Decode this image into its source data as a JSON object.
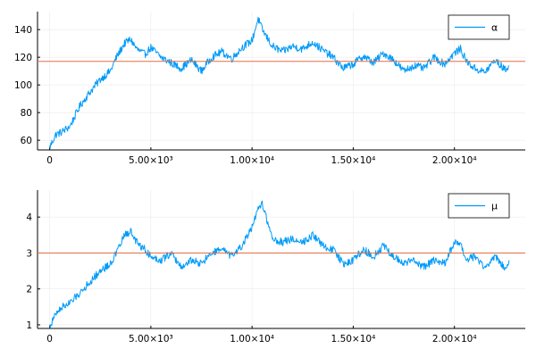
{
  "colors": {
    "series": "#009af9",
    "reference": "#e26f46",
    "grid": "#ebebeb",
    "axis": "#000000"
  },
  "chart_data": [
    {
      "type": "line",
      "legend_position": "top-right",
      "grid": true,
      "xlim": [
        -600,
        23500
      ],
      "ylim": [
        53,
        153
      ],
      "x_ticks": [
        0,
        5000,
        10000,
        15000,
        20000
      ],
      "x_tick_labels": [
        "0",
        "5.00×10³",
        "1.00×10⁴",
        "1.50×10⁴",
        "2.00×10⁴"
      ],
      "y_ticks": [
        60,
        80,
        100,
        120,
        140
      ],
      "y_tick_labels": [
        "60",
        "80",
        "100",
        "120",
        "140"
      ],
      "reference_line": 117,
      "series": [
        {
          "name": "α",
          "x": [
            0,
            300,
            600,
            1000,
            1500,
            2000,
            2500,
            3000,
            3300,
            3700,
            4000,
            4300,
            4700,
            5000,
            5500,
            6000,
            6500,
            7000,
            7500,
            8000,
            8500,
            9000,
            9500,
            10000,
            10300,
            10500,
            11000,
            11500,
            12000,
            12500,
            13000,
            13500,
            14000,
            14500,
            15000,
            15500,
            16000,
            16500,
            17000,
            17500,
            18000,
            18500,
            19000,
            19500,
            20000,
            20300,
            20600,
            21000,
            21500,
            22000,
            22500,
            22700
          ],
          "y": [
            55,
            64,
            66,
            70,
            85,
            95,
            104,
            110,
            120,
            130,
            133,
            126,
            122,
            127,
            120,
            116,
            112,
            118,
            110,
            120,
            124,
            119,
            127,
            132,
            148,
            140,
            128,
            124,
            128,
            126,
            131,
            125,
            120,
            112,
            115,
            121,
            116,
            123,
            118,
            110,
            114,
            112,
            120,
            115,
            123,
            126,
            117,
            112,
            109,
            118,
            111,
            114
          ]
        },
        {
          "name": "",
          "x": [],
          "y": []
        }
      ]
    },
    {
      "type": "line",
      "legend_position": "top-right",
      "grid": true,
      "xlim": [
        -600,
        23500
      ],
      "ylim": [
        0.9,
        4.75
      ],
      "x_ticks": [
        0,
        5000,
        10000,
        15000,
        20000
      ],
      "x_tick_labels": [
        "0",
        "5.00×10³",
        "1.00×10⁴",
        "1.50×10⁴",
        "2.00×10⁴"
      ],
      "y_ticks": [
        1,
        2,
        3,
        4
      ],
      "y_tick_labels": [
        "1",
        "2",
        "3",
        "4"
      ],
      "reference_line": 3.0,
      "series": [
        {
          "name": "μ",
          "x": [
            0,
            300,
            600,
            1000,
            1500,
            2000,
            2500,
            3000,
            3300,
            3700,
            4000,
            4300,
            4700,
            5000,
            5500,
            6000,
            6500,
            7000,
            7500,
            8000,
            8500,
            9000,
            9500,
            10000,
            10300,
            10500,
            11000,
            11500,
            12000,
            12500,
            13000,
            13500,
            14000,
            14500,
            15000,
            15500,
            16000,
            16500,
            17000,
            17500,
            18000,
            18500,
            19000,
            19500,
            20000,
            20300,
            20600,
            21000,
            21500,
            22000,
            22500,
            22700
          ],
          "y": [
            0.95,
            1.3,
            1.5,
            1.6,
            1.9,
            2.2,
            2.5,
            2.7,
            3.0,
            3.5,
            3.6,
            3.3,
            3.1,
            2.9,
            2.8,
            3.0,
            2.6,
            2.8,
            2.7,
            3.0,
            3.1,
            2.9,
            3.2,
            3.7,
            4.2,
            4.4,
            3.4,
            3.3,
            3.4,
            3.3,
            3.5,
            3.2,
            3.1,
            2.7,
            2.8,
            3.1,
            2.9,
            3.2,
            2.9,
            2.7,
            2.8,
            2.6,
            2.8,
            2.7,
            3.3,
            3.2,
            2.8,
            2.9,
            2.6,
            2.9,
            2.6,
            2.8
          ]
        },
        {
          "name": "",
          "x": [],
          "y": []
        }
      ]
    }
  ]
}
